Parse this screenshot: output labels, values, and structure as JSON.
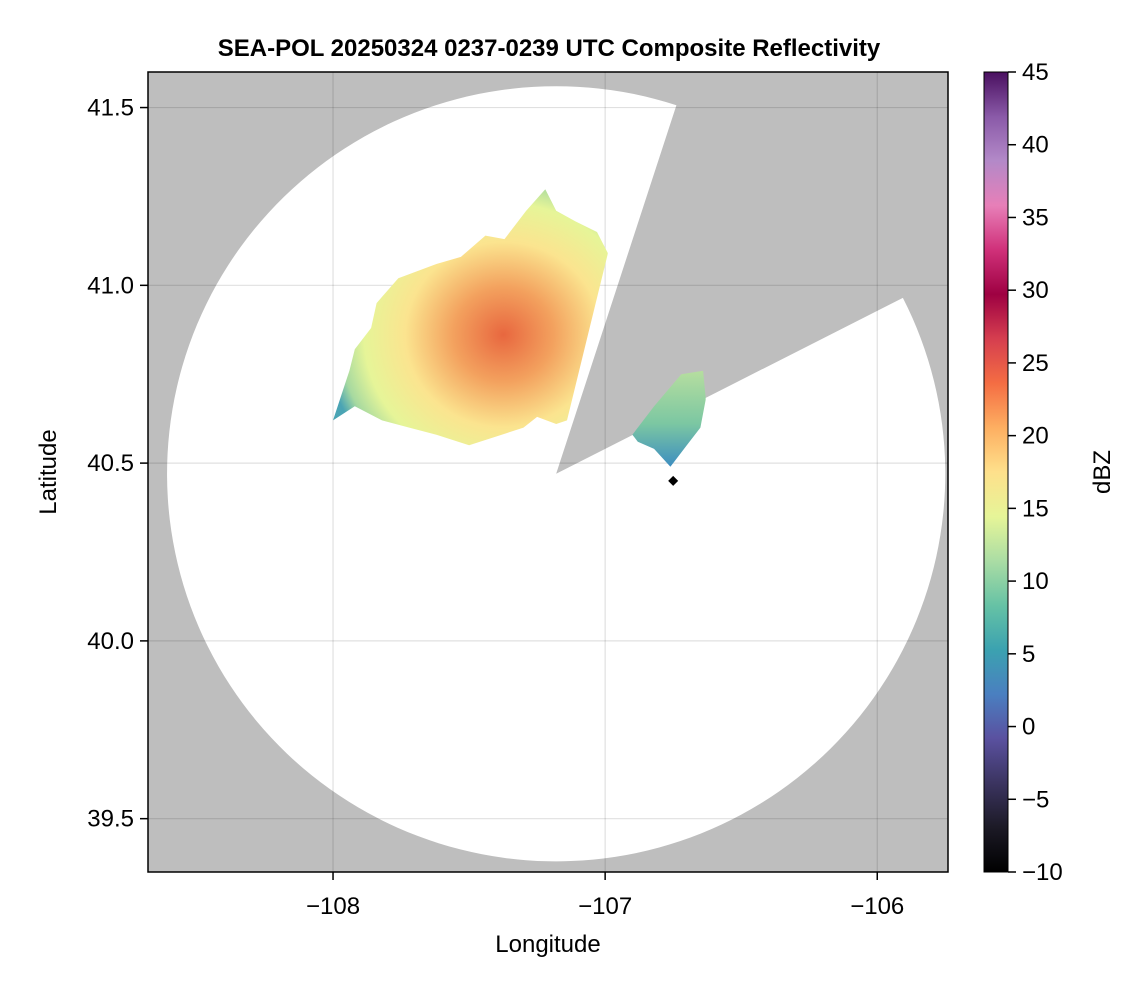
{
  "chart_data": {
    "type": "heatmap",
    "title": "SEA-POL 20250324 0237-0239 UTC Composite Reflectivity",
    "xlabel": "Longitude",
    "ylabel": "Latitude",
    "xlim": [
      -108.68,
      -105.74
    ],
    "ylim": [
      39.35,
      41.6
    ],
    "x_ticks": [
      -108,
      -107,
      -106
    ],
    "x_tick_labels": [
      "−108",
      "−107",
      "−106"
    ],
    "y_ticks": [
      39.5,
      40.0,
      40.5,
      41.0,
      41.5
    ],
    "y_tick_labels": [
      "39.5",
      "40.0",
      "40.5",
      "41.0",
      "41.5"
    ],
    "grid": true,
    "background_color": "#bebebe",
    "coverage_color": "#ffffff",
    "radar": {
      "center_lon": -107.18,
      "center_lat": 40.47,
      "range_lon": 1.43,
      "range_lat": 1.09,
      "blocked_sectors_deg_cw_from_north": [
        [
          18,
          63
        ]
      ]
    },
    "site_marker": {
      "lon": -106.75,
      "lat": 40.45
    },
    "colorbar": {
      "label": "dBZ",
      "min": -10,
      "max": 45,
      "ticks": [
        -10,
        -5,
        0,
        5,
        10,
        15,
        20,
        25,
        30,
        35,
        40,
        45
      ],
      "tick_labels": [
        "−10",
        "−5",
        "0",
        "5",
        "10",
        "15",
        "20",
        "25",
        "30",
        "35",
        "40",
        "45"
      ],
      "colors": [
        "#000000",
        "#1c1a26",
        "#3b3460",
        "#5a51a0",
        "#4a7fc0",
        "#3ba2b0",
        "#66c2a5",
        "#abdda4",
        "#e6f598",
        "#fee08b",
        "#fdae61",
        "#f46d43",
        "#d53e4f",
        "#9e0142",
        "#d0317a",
        "#e77fb8",
        "#b389c8",
        "#8a5aa8",
        "#4a1060"
      ]
    },
    "echo_regions": [
      {
        "name": "main",
        "lon_range": [
          -108.0,
          -106.99
        ],
        "lat_range": [
          40.54,
          41.27
        ]
      },
      {
        "name": "east",
        "lon_range": [
          -106.9,
          -106.63
        ],
        "lat_range": [
          40.49,
          40.76
        ]
      }
    ]
  }
}
